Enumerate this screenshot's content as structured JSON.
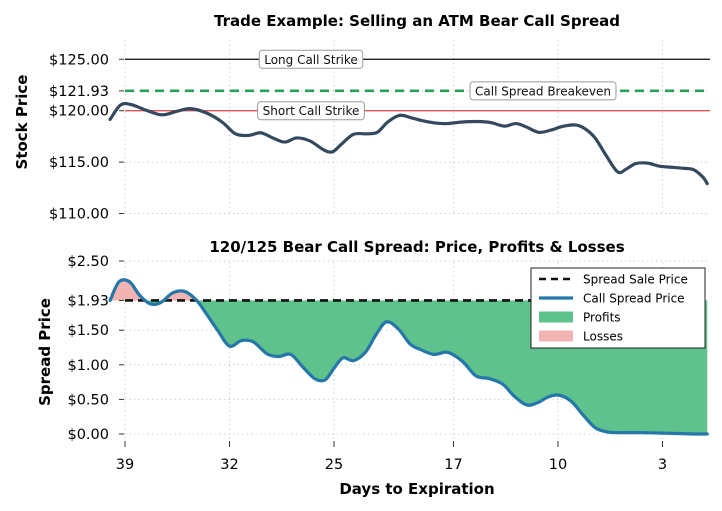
{
  "chart_data": [
    {
      "type": "line",
      "title": "Trade Example: Selling an ATM Bear Call Spread",
      "ylabel": "Stock Price",
      "ylim": [
        110,
        125
      ],
      "yticks": [
        110,
        115,
        120,
        121.93,
        125
      ],
      "ytick_labels": [
        "$110.00",
        "$115.00",
        "$120.00",
        "$121.93",
        "$125.00"
      ],
      "grid": true,
      "hlines": [
        {
          "label": "Long Call Strike",
          "value": 125.0,
          "color": "#222222",
          "style": "solid"
        },
        {
          "label": "Call Spread Breakeven",
          "value": 121.93,
          "color": "#27a05a",
          "style": "dashed"
        },
        {
          "label": "Short Call Strike",
          "value": 120.0,
          "color": "#d9534f",
          "style": "solid"
        }
      ],
      "series": [
        {
          "color": "#34495e",
          "x": [
            40,
            39.3,
            38.6,
            37.5,
            36.5,
            35.5,
            34.6,
            33.5,
            32.5,
            31.6,
            30.7,
            29.9,
            29.1,
            28.3,
            27.5,
            26.6,
            25.7,
            25.1,
            24.5,
            23.7,
            22.8,
            22.1,
            21.4,
            20.6,
            19.8,
            19.0,
            18.2,
            17.4,
            16.4,
            15.4,
            14.5,
            13.6,
            12.8,
            12.1,
            11.3,
            10.5,
            9.6,
            8.6,
            7.6,
            6.8,
            6.0,
            5.4,
            4.8,
            4.0,
            3.2,
            2.4,
            1.6,
            0.9,
            0.3,
            0
          ],
          "values": [
            119.15,
            120.55,
            120.6,
            120.0,
            119.6,
            119.95,
            120.2,
            119.75,
            118.9,
            117.75,
            117.6,
            117.85,
            117.35,
            116.95,
            117.35,
            117.05,
            116.2,
            116.0,
            116.75,
            117.7,
            117.75,
            117.9,
            118.9,
            119.55,
            119.3,
            119.0,
            118.8,
            118.75,
            118.9,
            118.95,
            118.85,
            118.5,
            118.75,
            118.4,
            117.9,
            118.1,
            118.5,
            118.55,
            117.5,
            115.7,
            114.05,
            114.35,
            114.85,
            114.9,
            114.6,
            114.5,
            114.4,
            114.25,
            113.55,
            112.9
          ]
        }
      ]
    },
    {
      "type": "area",
      "title": "120/125 Bear Call Spread: Price, Profits & Losses",
      "ylabel": "Spread Price",
      "xlabel": "Days to Expiration",
      "xlim": [
        39,
        0
      ],
      "xticks": [
        39,
        32,
        25,
        17,
        10,
        3
      ],
      "ylim": [
        0,
        2.5
      ],
      "yticks": [
        0,
        0.5,
        1.0,
        1.5,
        1.93,
        2.5
      ],
      "ytick_labels": [
        "$0.00",
        "$0.50",
        "$1.00",
        "$1.50",
        "$1.93",
        "$2.50"
      ],
      "grid": true,
      "legend_position": "top-right",
      "legend": [
        "Spread Sale Price",
        "Call Spread Price",
        "Profits",
        "Losses"
      ],
      "spread_sale_price": 1.93,
      "series": [
        {
          "name": "Call Spread Price",
          "color": "#2477a8",
          "x": [
            40,
            39.4,
            38.7,
            38.0,
            37.3,
            36.6,
            35.8,
            35.0,
            34.2,
            33.5,
            32.8,
            32.0,
            31.2,
            30.4,
            29.5,
            28.7,
            27.9,
            27.1,
            26.3,
            25.6,
            25.0,
            24.4,
            23.7,
            22.9,
            22.2,
            21.5,
            20.7,
            19.9,
            19.2,
            18.3,
            17.4,
            16.4,
            15.5,
            14.6,
            13.7,
            12.9,
            12.1,
            11.4,
            10.6,
            9.9,
            9.1,
            8.3,
            7.5,
            6.7,
            6.0,
            5.2,
            4.4,
            3.5,
            2.6,
            1.7,
            0.8,
            0
          ],
          "values": [
            1.93,
            2.2,
            2.2,
            2.0,
            1.88,
            1.9,
            2.04,
            2.06,
            1.93,
            1.72,
            1.5,
            1.27,
            1.35,
            1.33,
            1.16,
            1.12,
            1.15,
            0.97,
            0.8,
            0.78,
            0.95,
            1.1,
            1.06,
            1.18,
            1.43,
            1.62,
            1.52,
            1.3,
            1.22,
            1.15,
            1.18,
            1.05,
            0.84,
            0.8,
            0.72,
            0.54,
            0.42,
            0.45,
            0.54,
            0.56,
            0.47,
            0.27,
            0.09,
            0.03,
            0.02,
            0.02,
            0.02,
            0.015,
            0.01,
            0.005,
            0.0,
            0.0
          ]
        }
      ]
    }
  ]
}
